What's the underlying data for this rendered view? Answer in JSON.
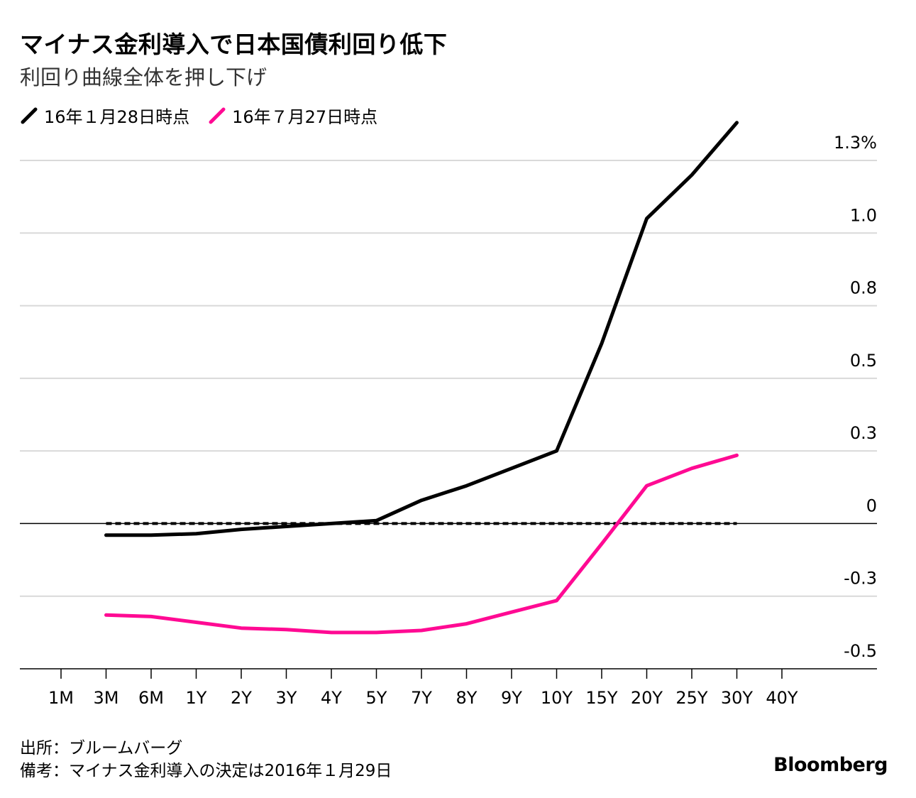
{
  "title": "マイナス金利導入で日本国債利回り低下",
  "subtitle": "利回り曲線全体を押し下げ",
  "chart_data": {
    "type": "line",
    "categories": [
      "1M",
      "3M",
      "6M",
      "1Y",
      "2Y",
      "3Y",
      "4Y",
      "5Y",
      "7Y",
      "8Y",
      "9Y",
      "10Y",
      "15Y",
      "20Y",
      "25Y",
      "30Y",
      "40Y"
    ],
    "series": [
      {
        "name": "16年１月28日時点",
        "color": "#000000",
        "values": [
          null,
          -0.04,
          -0.04,
          -0.035,
          -0.02,
          -0.01,
          0.0,
          0.01,
          0.08,
          0.13,
          0.19,
          0.25,
          0.62,
          1.05,
          1.2,
          1.38,
          null
        ]
      },
      {
        "name": "16年７月27日時点",
        "color": "#ff0a93",
        "values": [
          null,
          -0.315,
          -0.32,
          -0.34,
          -0.36,
          -0.365,
          -0.375,
          -0.375,
          -0.368,
          -0.345,
          -0.305,
          -0.265,
          -0.07,
          0.13,
          0.19,
          0.235,
          null
        ]
      }
    ],
    "zero_line": {
      "style": "dotted",
      "start": "3M",
      "end": "30Y",
      "value": 0
    },
    "y_ticks": [
      -0.5,
      -0.25,
      0,
      0.25,
      0.5,
      0.75,
      1.0,
      1.25
    ],
    "y_tick_labels": [
      "-0.5",
      "-0.3",
      "0",
      "0.3",
      "0.5",
      "0.8",
      "1.0",
      "1.3%"
    ],
    "ylim": [
      -0.5,
      1.25
    ],
    "xlabel": "",
    "ylabel": ""
  },
  "footer": {
    "source": "出所：ブルームバーグ",
    "note": "備考：マイナス金利導入の決定は2016年１月29日"
  },
  "brand": "Bloomberg"
}
